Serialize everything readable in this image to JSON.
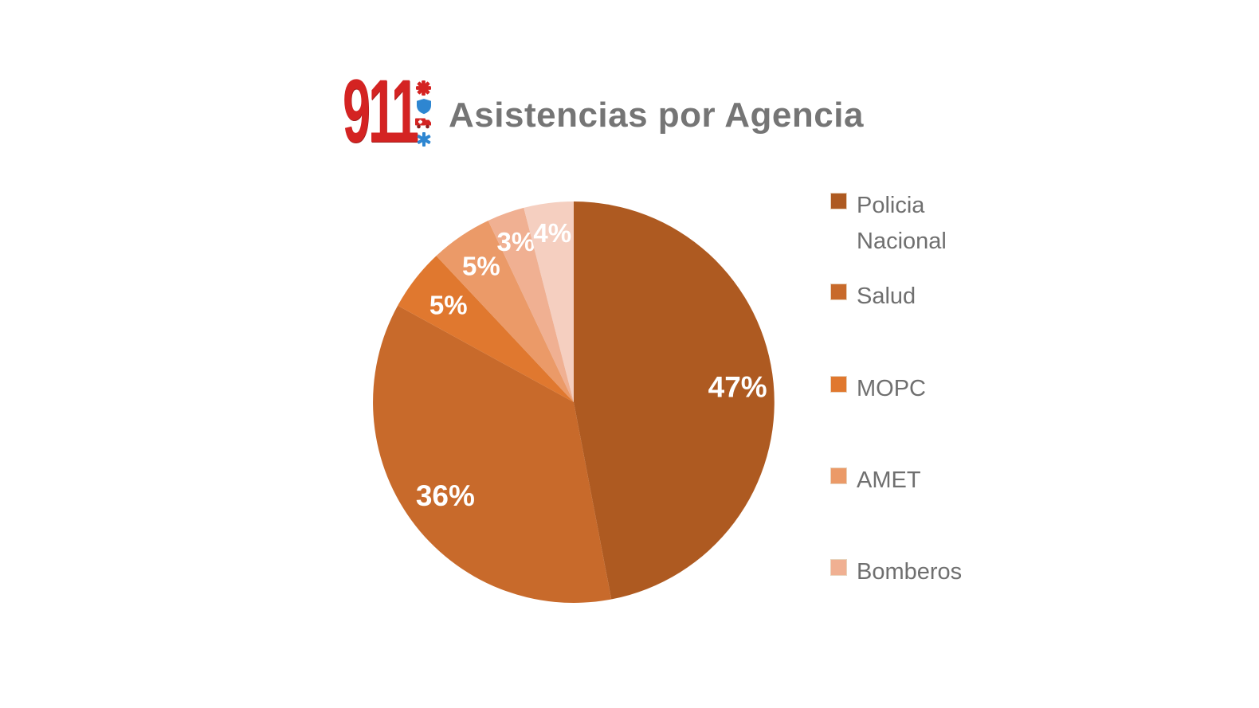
{
  "header": {
    "logo_text": "911",
    "logo_icons": [
      "medical-cross-icon",
      "police-shield-icon",
      "ambulance-icon",
      "star-of-life-icon"
    ],
    "title": "Asistencias por Agencia"
  },
  "chart_data": {
    "type": "pie",
    "title": "Asistencias por Agencia",
    "unit": "percent",
    "start_angle_deg": 0,
    "direction": "clockwise",
    "categories": [
      "Policia Nacional",
      "Salud",
      "MOPC",
      "AMET",
      "Bomberos",
      ""
    ],
    "values": [
      47,
      36,
      5,
      5,
      3,
      4
    ],
    "labels": [
      "47%",
      "36%",
      "5%",
      "5%",
      "3%",
      "4%"
    ],
    "colors": [
      "#ae5a21",
      "#c86a2b",
      "#e0782f",
      "#eb9a68",
      "#f0b092",
      "#f5cfc0"
    ],
    "legend": {
      "position": "right",
      "entries": [
        {
          "label": "Policia Nacional",
          "color": "#ae5a21"
        },
        {
          "label": "Salud",
          "color": "#c86a2b"
        },
        {
          "label": "MOPC",
          "color": "#e0782f"
        },
        {
          "label": "AMET",
          "color": "#eb9a68"
        },
        {
          "label": "Bomberos",
          "color": "#f0b092"
        }
      ]
    }
  },
  "colors": {
    "logo_red": "#d42322",
    "logo_blue": "#2e86d1",
    "title_gray": "#757575",
    "legend_text_gray": "#6f6f6f",
    "data_label_white": "#ffffff"
  }
}
